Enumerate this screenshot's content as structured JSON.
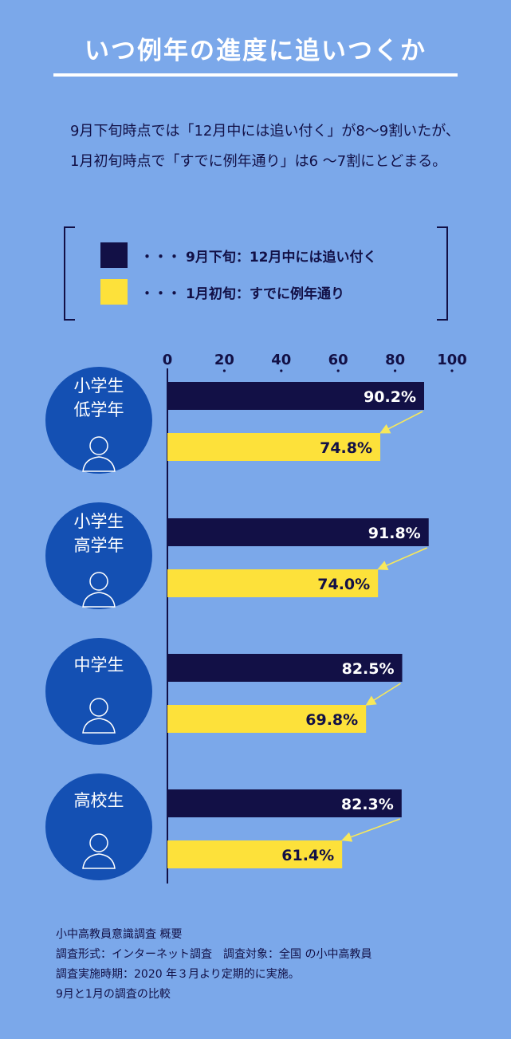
{
  "title": "いつ例年の進度に追いつくか",
  "intro": "9月下旬時点では「12月中には追い付く」が8〜9割いたが、1月初旬時点で「すでに例年通り」は6 〜7割にとどまる。",
  "legend": [
    {
      "marker": "・・・",
      "label": "9月下旬：12月中には追い付く",
      "color": "#121046"
    },
    {
      "marker": "・・・",
      "label": "1月初旬：すでに例年通り",
      "color": "#fde13a"
    }
  ],
  "colors": {
    "background": "#7ba8ea",
    "navy": "#121046",
    "yellow": "#fde13a",
    "circle": "#1450b3",
    "arrow": "#f8e85a"
  },
  "chart_data": {
    "type": "bar",
    "orientation": "horizontal",
    "xlim": [
      0,
      100
    ],
    "xticks": [
      "0",
      "20",
      "40",
      "60",
      "80",
      "100"
    ],
    "categories": [
      "小学生\n低学年",
      "小学生\n高学年",
      "中学生",
      "高校生"
    ],
    "category_icons": [
      "girl-icon",
      "boy-icon",
      "girl-long-hair-icon",
      "high-school-boy-icon"
    ],
    "series": [
      {
        "name": "9月下旬：12月中には追い付く",
        "values": [
          90.2,
          91.8,
          82.5,
          82.3
        ],
        "labels": [
          "90.2%",
          "91.8%",
          "82.5%",
          "82.3%"
        ]
      },
      {
        "name": "1月初旬：すでに例年通り",
        "values": [
          74.8,
          74.0,
          69.8,
          61.4
        ],
        "labels": [
          "74.8%",
          "74.0%",
          "69.8%",
          "61.4%"
        ]
      }
    ]
  },
  "footer": [
    "小中高教員意識調査 概要",
    "調査形式：インターネット調査　調査対象：全国 の小中高教員",
    "調査実施時期：2020 年３月より定期的に実施。",
    "9月と1月の調査の比較"
  ]
}
